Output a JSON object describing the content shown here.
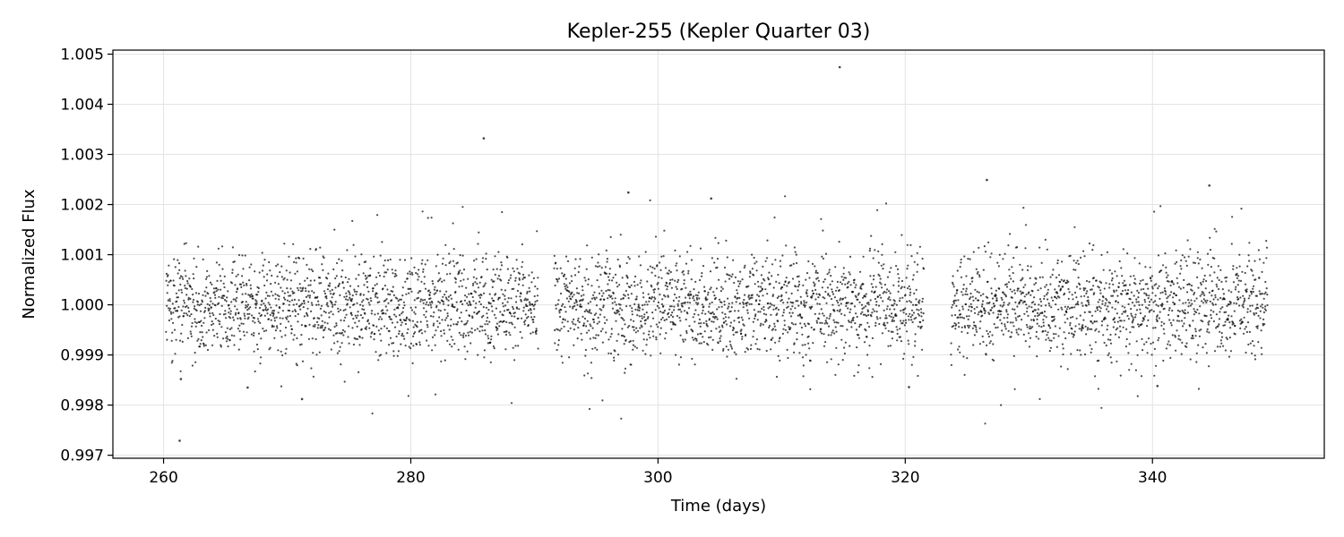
{
  "chart_data": {
    "type": "scatter",
    "title": "Kepler-255 (Kepler Quarter 03)",
    "xlabel": "Time (days)",
    "ylabel": "Normalized Flux",
    "xlim": [
      255.9,
      353.9
    ],
    "ylim": [
      0.99694,
      1.00508
    ],
    "xticks": [
      260,
      280,
      300,
      320,
      340
    ],
    "xtick_labels": [
      "260",
      "280",
      "300",
      "320",
      "340"
    ],
    "yticks": [
      0.997,
      0.998,
      0.999,
      1.0,
      1.001,
      1.002,
      1.003,
      1.004,
      1.005
    ],
    "ytick_labels": [
      "0.997",
      "0.998",
      "0.999",
      "1.000",
      "1.001",
      "1.002",
      "1.003",
      "1.004",
      "1.005"
    ],
    "grid": true,
    "marker_color": "#000000",
    "series": [
      {
        "segments": [
          {
            "x_start": 260.2,
            "x_end": 290.3
          },
          {
            "x_start": 291.6,
            "x_end": 321.5
          },
          {
            "x_start": 323.7,
            "x_end": 349.3
          }
        ],
        "typical_range": [
          0.999,
          1.001
        ],
        "notable_points": [
          {
            "x": 261.3,
            "y": 0.99729
          },
          {
            "x": 261.4,
            "y": 0.99852
          },
          {
            "x": 266.8,
            "y": 0.99835
          },
          {
            "x": 271.2,
            "y": 0.99812
          },
          {
            "x": 285.9,
            "y": 1.00332
          },
          {
            "x": 297.6,
            "y": 1.00224
          },
          {
            "x": 304.3,
            "y": 1.00212
          },
          {
            "x": 314.7,
            "y": 1.00474
          },
          {
            "x": 320.3,
            "y": 0.99836
          },
          {
            "x": 326.6,
            "y": 1.00249
          },
          {
            "x": 340.4,
            "y": 0.99838
          },
          {
            "x": 344.6,
            "y": 1.00238
          }
        ]
      }
    ]
  }
}
